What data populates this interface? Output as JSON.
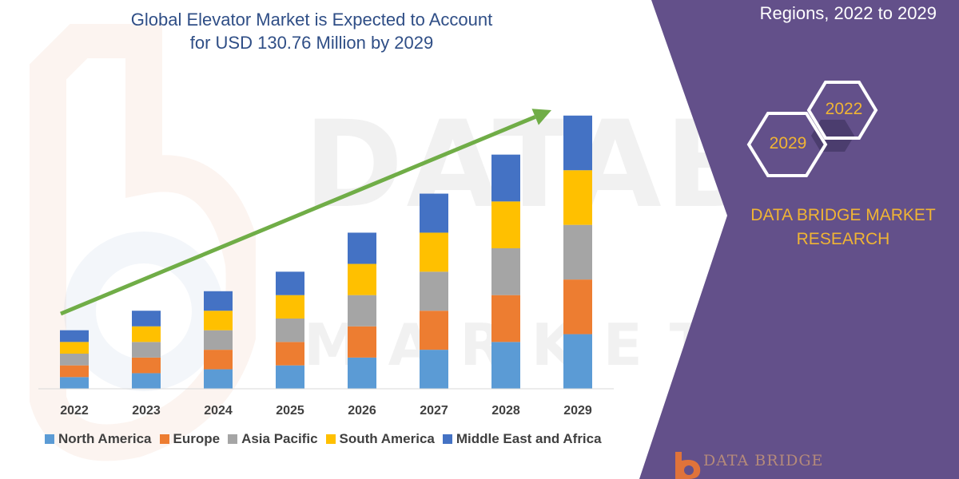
{
  "header": {
    "title_line1": "Global Elevator Market is Expected to Account",
    "title_line2": "for USD 130.76 Million by 2029"
  },
  "side_panel": {
    "subtitle": "Regions, 2022 to 2029",
    "hex_2022": "2022",
    "hex_2029": "2029",
    "brand_line1": "DATA BRIDGE MARKET",
    "brand_line2": "RESEARCH",
    "logo_text": "DATA BRIDGE",
    "panel_color": "#63508a",
    "accent_color": "#f0b434"
  },
  "watermark": {
    "line1": "DATABRIDGE",
    "line2": "MARKET RESEARCH"
  },
  "chart_data": {
    "type": "bar",
    "stacked": true,
    "title": "Global Elevator Market is Expected to Account for USD 130.76 Million by 2029",
    "xlabel": "",
    "ylabel": "",
    "categories": [
      "2022",
      "2023",
      "2024",
      "2025",
      "2026",
      "2027",
      "2028",
      "2029"
    ],
    "series": [
      {
        "name": "North America",
        "color": "#5b9bd5",
        "values": [
          3,
          4,
          5,
          6,
          8,
          10,
          12,
          14
        ]
      },
      {
        "name": "Europe",
        "color": "#ed7d31",
        "values": [
          3,
          4,
          5,
          6,
          8,
          10,
          12,
          14
        ]
      },
      {
        "name": "Asia Pacific",
        "color": "#a5a5a5",
        "values": [
          3,
          4,
          5,
          6,
          8,
          10,
          12,
          14
        ]
      },
      {
        "name": "South America",
        "color": "#ffc000",
        "values": [
          3,
          4,
          5,
          6,
          8,
          10,
          12,
          14
        ]
      },
      {
        "name": "Middle East and Africa",
        "color": "#4472c4",
        "values": [
          3,
          4,
          5,
          6,
          8,
          10,
          12,
          14
        ]
      }
    ],
    "ylim": [
      0,
      72
    ],
    "grid": false,
    "legend_position": "bottom",
    "trend_arrow": {
      "color": "#70ad47",
      "from_category": "2022",
      "to_category": "2029"
    }
  }
}
